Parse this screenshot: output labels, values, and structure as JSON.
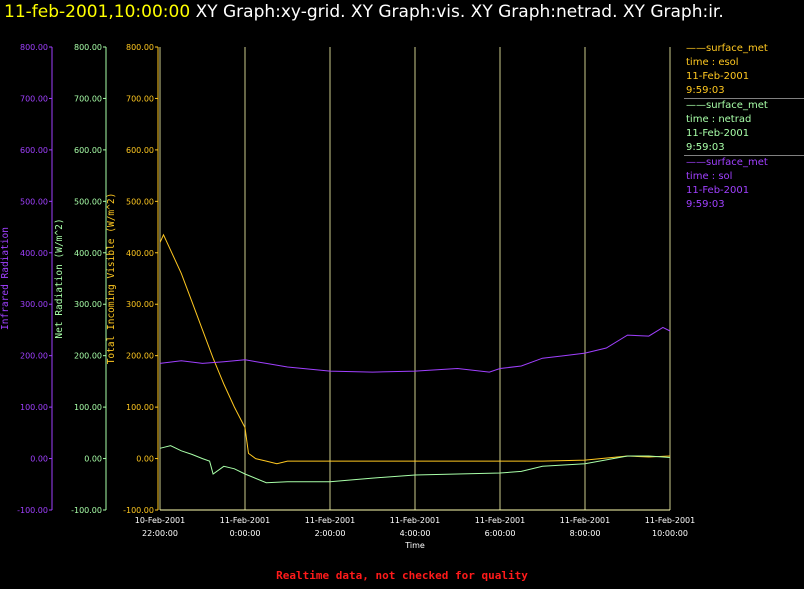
{
  "header": {
    "datetime": "11-feb-2001,10:00:00",
    "graphs": "XY Graph:xy-grid.  XY Graph:vis.  XY Graph:netrad.  XY Graph:ir."
  },
  "footer": {
    "note": "Realtime data, not checked for quality"
  },
  "legend": [
    {
      "station": "surface_met",
      "variable": "time : esol",
      "date": "11-Feb-2001",
      "time": "9:59:03",
      "color": "#ffc820"
    },
    {
      "station": "surface_met",
      "variable": "time : netrad",
      "date": "11-Feb-2001",
      "time": "9:59:03",
      "color": "#a8ffa8"
    },
    {
      "station": "surface_met",
      "variable": "time : sol",
      "date": "11-Feb-2001",
      "time": "9:59:03",
      "color": "#a040ff"
    }
  ],
  "chart_data": {
    "type": "line",
    "xlabel": "Time",
    "xlim": [
      "10-Feb-2001 22:00:00",
      "11-Feb-2001 10:00:00"
    ],
    "x_ticks": [
      {
        "date": "10-Feb-2001",
        "time": "22:00:00"
      },
      {
        "date": "11-Feb-2001",
        "time": "0:00:00"
      },
      {
        "date": "11-Feb-2001",
        "time": "2:00:00"
      },
      {
        "date": "11-Feb-2001",
        "time": "4:00:00"
      },
      {
        "date": "11-Feb-2001",
        "time": "6:00:00"
      },
      {
        "date": "11-Feb-2001",
        "time": "8:00:00"
      },
      {
        "date": "11-Feb-2001",
        "time": "10:00:00"
      }
    ],
    "y_ticks": [
      "800.00",
      "700.00",
      "600.00",
      "500.00",
      "400.00",
      "300.00",
      "200.00",
      "100.00",
      "0.00",
      "-100.00"
    ],
    "y_axes": [
      {
        "label": "Infrared Radiation",
        "ylim": [
          -100,
          800
        ],
        "color": "#a040ff"
      },
      {
        "label": "Net Radiation (W/m^2)",
        "ylim": [
          -100,
          800
        ],
        "color": "#a8ffa8"
      },
      {
        "label": "Total Incoming Visible (W/m^2)",
        "ylim": [
          -100,
          800
        ],
        "color": "#ffc820"
      }
    ],
    "grid": "vertical",
    "series": [
      {
        "variable": "esol",
        "color": "#ffc820",
        "x": [
          "10-Feb-2001 22:00",
          "10-Feb-2001 22:05",
          "10-Feb-2001 22:15",
          "10-Feb-2001 22:30",
          "10-Feb-2001 22:45",
          "10-Feb-2001 23:00",
          "10-Feb-2001 23:15",
          "10-Feb-2001 23:30",
          "10-Feb-2001 23:45",
          "11-Feb-2001 00:00",
          "11-Feb-2001 00:05",
          "11-Feb-2001 00:15",
          "11-Feb-2001 00:30",
          "11-Feb-2001 00:45",
          "11-Feb-2001 01:00",
          "11-Feb-2001 02:00",
          "11-Feb-2001 03:00",
          "11-Feb-2001 04:00",
          "11-Feb-2001 05:00",
          "11-Feb-2001 06:00",
          "11-Feb-2001 07:00",
          "11-Feb-2001 08:00",
          "11-Feb-2001 09:00",
          "11-Feb-2001 09:30",
          "11-Feb-2001 10:00"
        ],
        "y": [
          420,
          435,
          405,
          360,
          305,
          250,
          195,
          145,
          100,
          60,
          10,
          0,
          -5,
          -10,
          -5,
          -5,
          -5,
          -5,
          -5,
          -5,
          -5,
          -3,
          5,
          3,
          5
        ]
      },
      {
        "variable": "netrad",
        "color": "#a8ffa8",
        "x": [
          "10-Feb-2001 22:00",
          "10-Feb-2001 22:15",
          "10-Feb-2001 22:30",
          "10-Feb-2001 22:45",
          "10-Feb-2001 23:00",
          "10-Feb-2001 23:10",
          "10-Feb-2001 23:15",
          "10-Feb-2001 23:30",
          "10-Feb-2001 23:45",
          "11-Feb-2001 00:00",
          "11-Feb-2001 00:30",
          "11-Feb-2001 01:00",
          "11-Feb-2001 02:00",
          "11-Feb-2001 03:00",
          "11-Feb-2001 04:00",
          "11-Feb-2001 05:00",
          "11-Feb-2001 06:00",
          "11-Feb-2001 06:30",
          "11-Feb-2001 07:00",
          "11-Feb-2001 08:00",
          "11-Feb-2001 09:00",
          "11-Feb-2001 09:30",
          "11-Feb-2001 10:00"
        ],
        "y": [
          20,
          25,
          15,
          8,
          0,
          -5,
          -30,
          -15,
          -20,
          -30,
          -47,
          -45,
          -45,
          -38,
          -32,
          -30,
          -28,
          -25,
          -15,
          -10,
          5,
          5,
          2
        ]
      },
      {
        "variable": "sol",
        "color": "#a040ff",
        "x": [
          "10-Feb-2001 22:00",
          "10-Feb-2001 22:30",
          "10-Feb-2001 23:00",
          "10-Feb-2001 23:30",
          "11-Feb-2001 00:00",
          "11-Feb-2001 00:30",
          "11-Feb-2001 01:00",
          "11-Feb-2001 02:00",
          "11-Feb-2001 03:00",
          "11-Feb-2001 04:00",
          "11-Feb-2001 05:00",
          "11-Feb-2001 05:45",
          "11-Feb-2001 06:00",
          "11-Feb-2001 06:30",
          "11-Feb-2001 07:00",
          "11-Feb-2001 07:30",
          "11-Feb-2001 08:00",
          "11-Feb-2001 08:30",
          "11-Feb-2001 09:00",
          "11-Feb-2001 09:30",
          "11-Feb-2001 09:50",
          "11-Feb-2001 10:00"
        ],
        "y": [
          185,
          190,
          185,
          188,
          192,
          185,
          178,
          170,
          168,
          170,
          175,
          168,
          175,
          180,
          195,
          200,
          205,
          215,
          240,
          238,
          255,
          248
        ]
      }
    ]
  }
}
